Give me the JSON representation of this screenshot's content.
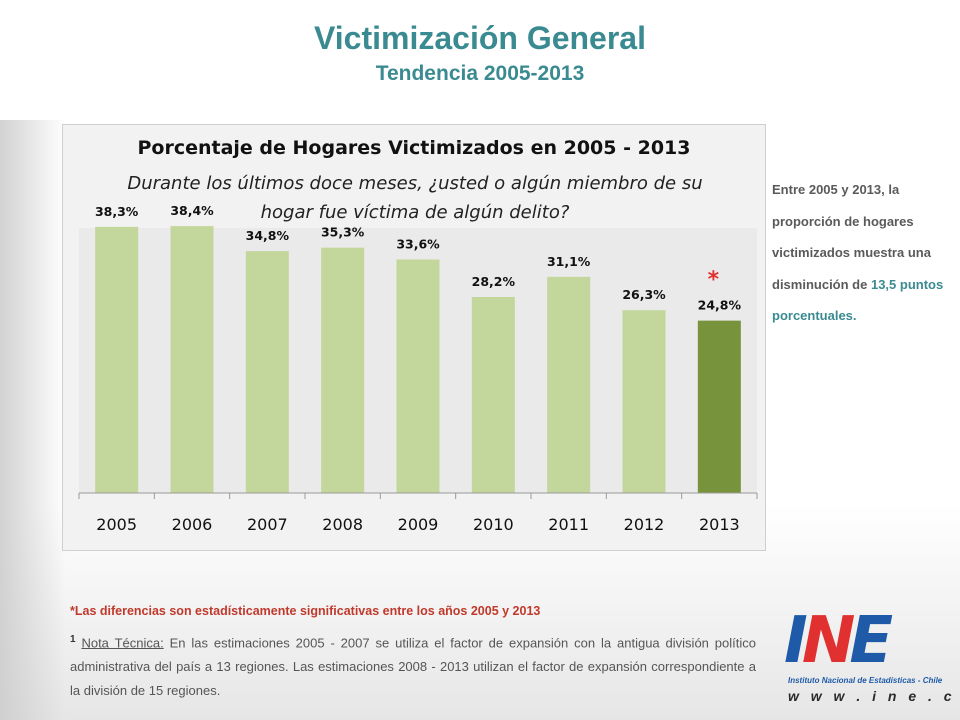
{
  "header": {
    "title": "Victimización General",
    "subtitle": "Tendencia 2005-2013"
  },
  "chart_data": {
    "type": "bar",
    "title": "Porcentaje de Hogares Victimizados  en 2005 - 2013",
    "subtitle": "Durante los últimos doce meses, ¿usted o algún miembro de su hogar fue víctima de algún delito?",
    "categories": [
      "2005",
      "2006",
      "2007",
      "2008",
      "2009",
      "2010",
      "2011",
      "2012",
      "2013"
    ],
    "values": [
      38.3,
      38.4,
      34.8,
      35.3,
      33.6,
      28.2,
      31.1,
      26.3,
      24.8
    ],
    "data_labels": [
      "38,3%",
      "38,4%",
      "34,8%",
      "35,3%",
      "33,6%",
      "28,2%",
      "31,1%",
      "26,3%",
      "24,8%"
    ],
    "highlight_index": 8,
    "significance_marker": "*",
    "ylim": [
      0,
      40
    ],
    "xlabel": "",
    "ylabel": "",
    "grid": false,
    "colors": {
      "bar": "#c3d69b",
      "highlight": "#77933c"
    }
  },
  "side_note": {
    "text_before": "Entre 2005 y 2013, la proporción de hogares victimizados muestra una disminución de ",
    "highlight": "13,5 puntos porcentuales.",
    "accent_color": "#3a8a91"
  },
  "footnotes": {
    "significance": "*Las diferencias son estadísticamente significativas entre los años 2005 y 2013",
    "tech_number": "1",
    "tech_label": "Nota Técnica:",
    "tech_text": " En las estimaciones 2005 - 2007 se utiliza el factor de expansión con la antigua división político administrativa del país a 13 regiones. Las estimaciones 2008 - 2013 utilizan el factor de expansión correspondiente a la división de 15 regiones."
  },
  "logo": {
    "letters": "INE",
    "name": "Instituto Nacional de Estadísticas - Chile",
    "url": "w w w . i n e . c l"
  }
}
